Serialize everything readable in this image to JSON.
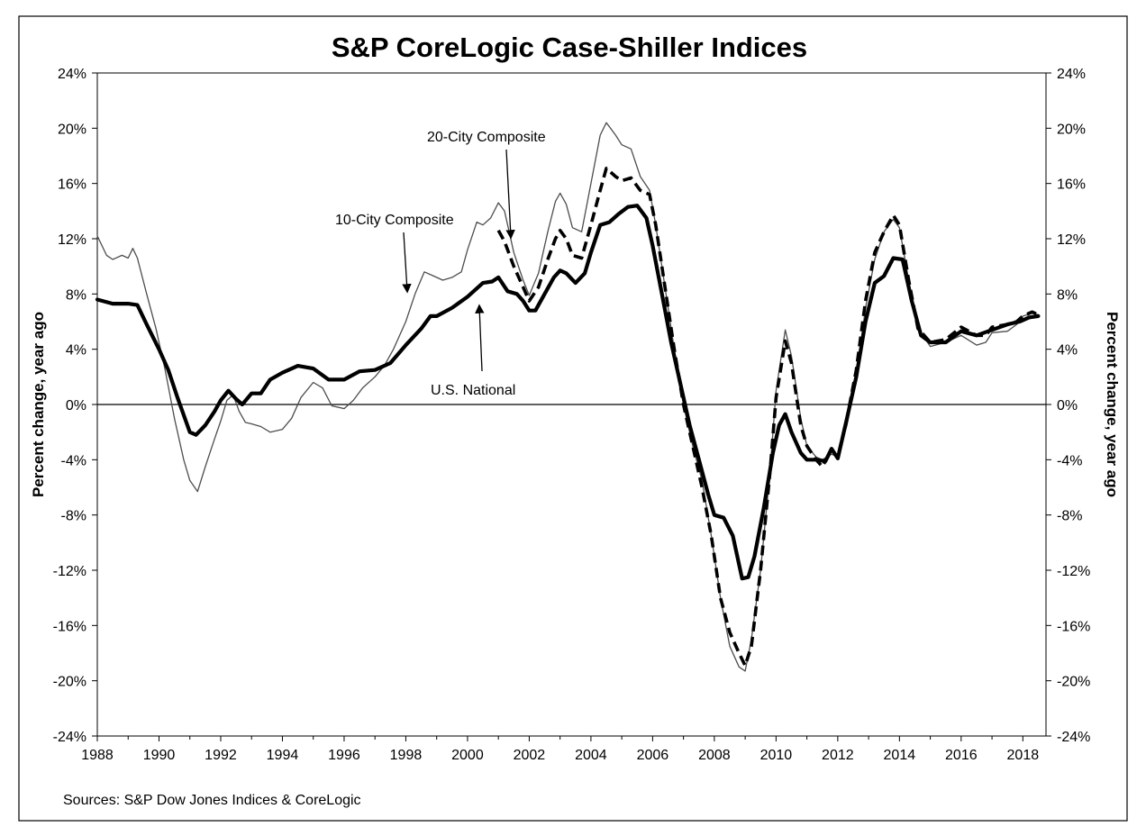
{
  "chart_data": {
    "type": "line",
    "title": "S&P CoreLogic Case-Shiller Indices",
    "ylabel_left": "Percent change, year ago",
    "ylabel_right": "Percent change, year ago",
    "source": "Sources: S&P Dow Jones Indices & CoreLogic",
    "xlim": [
      1988,
      2018.75
    ],
    "ylim": [
      -24,
      24
    ],
    "x_ticks": [
      1988,
      1990,
      1992,
      1994,
      1996,
      1998,
      2000,
      2002,
      2004,
      2006,
      2008,
      2010,
      2012,
      2014,
      2016,
      2018
    ],
    "x_tick_labels": [
      "1988",
      "1990",
      "1992",
      "1994",
      "1996",
      "1998",
      "2000",
      "2002",
      "2004",
      "2006",
      "2008",
      "2010",
      "2012",
      "2014",
      "2016",
      "2018"
    ],
    "y_ticks": [
      -24,
      -20,
      -16,
      -12,
      -8,
      -4,
      0,
      4,
      8,
      12,
      16,
      20,
      24
    ],
    "y_tick_labels": [
      "-24%",
      "-20%",
      "-16%",
      "-12%",
      "-8%",
      "-4%",
      "0%",
      "4%",
      "8%",
      "12%",
      "16%",
      "20%",
      "24%"
    ],
    "grid": false,
    "legend": "none",
    "series": [
      {
        "name": "10-City Composite",
        "style": "thin",
        "color": "#4d4d4d",
        "points": [
          [
            1988.0,
            12.2
          ],
          [
            1988.3,
            10.8
          ],
          [
            1988.5,
            10.5
          ],
          [
            1988.8,
            10.8
          ],
          [
            1989.0,
            10.6
          ],
          [
            1989.15,
            11.3
          ],
          [
            1989.3,
            10.6
          ],
          [
            1989.6,
            8.0
          ],
          [
            1989.9,
            5.5
          ],
          [
            1990.2,
            2.5
          ],
          [
            1990.5,
            -1.0
          ],
          [
            1990.8,
            -4.0
          ],
          [
            1991.0,
            -5.5
          ],
          [
            1991.25,
            -6.3
          ],
          [
            1991.5,
            -4.5
          ],
          [
            1991.8,
            -2.5
          ],
          [
            1992.0,
            -1.2
          ],
          [
            1992.2,
            0.3
          ],
          [
            1992.4,
            0.7
          ],
          [
            1992.6,
            -0.5
          ],
          [
            1992.8,
            -1.3
          ],
          [
            1993.0,
            -1.4
          ],
          [
            1993.3,
            -1.6
          ],
          [
            1993.6,
            -2.0
          ],
          [
            1994.0,
            -1.8
          ],
          [
            1994.3,
            -1.0
          ],
          [
            1994.6,
            0.5
          ],
          [
            1995.0,
            1.6
          ],
          [
            1995.3,
            1.2
          ],
          [
            1995.6,
            -0.1
          ],
          [
            1996.0,
            -0.3
          ],
          [
            1996.3,
            0.3
          ],
          [
            1996.6,
            1.2
          ],
          [
            1997.0,
            2.0
          ],
          [
            1997.3,
            2.8
          ],
          [
            1997.6,
            4.0
          ],
          [
            1998.0,
            6.0
          ],
          [
            1998.3,
            8.0
          ],
          [
            1998.6,
            9.6
          ],
          [
            1998.9,
            9.3
          ],
          [
            1999.2,
            9.0
          ],
          [
            1999.5,
            9.2
          ],
          [
            1999.8,
            9.6
          ],
          [
            2000.0,
            11.2
          ],
          [
            2000.3,
            13.2
          ],
          [
            2000.5,
            13.0
          ],
          [
            2000.75,
            13.5
          ],
          [
            2001.0,
            14.6
          ],
          [
            2001.2,
            14.0
          ],
          [
            2001.5,
            11.0
          ],
          [
            2001.8,
            9.0
          ],
          [
            2002.0,
            7.9
          ],
          [
            2002.3,
            9.5
          ],
          [
            2002.6,
            12.5
          ],
          [
            2002.85,
            14.7
          ],
          [
            2003.0,
            15.3
          ],
          [
            2003.2,
            14.5
          ],
          [
            2003.4,
            12.8
          ],
          [
            2003.7,
            12.5
          ],
          [
            2004.0,
            16.0
          ],
          [
            2004.3,
            19.5
          ],
          [
            2004.5,
            20.4
          ],
          [
            2004.8,
            19.5
          ],
          [
            2005.0,
            18.8
          ],
          [
            2005.3,
            18.5
          ],
          [
            2005.6,
            16.5
          ],
          [
            2005.9,
            15.5
          ],
          [
            2006.1,
            13.0
          ],
          [
            2006.4,
            8.5
          ],
          [
            2006.7,
            4.0
          ],
          [
            2007.0,
            0.0
          ],
          [
            2007.3,
            -3.0
          ],
          [
            2007.6,
            -5.5
          ],
          [
            2007.9,
            -9.5
          ],
          [
            2008.2,
            -14.0
          ],
          [
            2008.5,
            -17.5
          ],
          [
            2008.8,
            -19.0
          ],
          [
            2009.0,
            -19.3
          ],
          [
            2009.2,
            -17.0
          ],
          [
            2009.5,
            -12.0
          ],
          [
            2009.8,
            -5.0
          ],
          [
            2010.0,
            1.0
          ],
          [
            2010.3,
            5.4
          ],
          [
            2010.5,
            3.5
          ],
          [
            2010.8,
            -1.0
          ],
          [
            2011.0,
            -3.0
          ],
          [
            2011.3,
            -3.8
          ],
          [
            2011.5,
            -4.0
          ],
          [
            2011.8,
            -3.6
          ],
          [
            2012.0,
            -3.8
          ],
          [
            2012.3,
            -1.5
          ],
          [
            2012.6,
            2.0
          ],
          [
            2012.9,
            7.0
          ],
          [
            2013.2,
            10.5
          ],
          [
            2013.5,
            12.5
          ],
          [
            2013.8,
            13.4
          ],
          [
            2014.0,
            12.8
          ],
          [
            2014.3,
            9.0
          ],
          [
            2014.6,
            5.5
          ],
          [
            2015.0,
            4.2
          ],
          [
            2015.5,
            4.5
          ],
          [
            2016.0,
            5.0
          ],
          [
            2016.5,
            4.3
          ],
          [
            2016.8,
            4.5
          ],
          [
            2017.0,
            5.2
          ],
          [
            2017.5,
            5.3
          ],
          [
            2017.8,
            5.8
          ],
          [
            2018.0,
            6.4
          ],
          [
            2018.3,
            6.6
          ],
          [
            2018.5,
            6.5
          ]
        ]
      },
      {
        "name": "20-City Composite",
        "style": "dashed",
        "color": "#000000",
        "points": [
          [
            2001.0,
            12.6
          ],
          [
            2001.2,
            11.8
          ],
          [
            2001.5,
            10.0
          ],
          [
            2001.8,
            8.5
          ],
          [
            2002.0,
            7.5
          ],
          [
            2002.3,
            8.5
          ],
          [
            2002.6,
            10.5
          ],
          [
            2002.85,
            12.0
          ],
          [
            2003.0,
            12.6
          ],
          [
            2003.2,
            12.0
          ],
          [
            2003.4,
            10.8
          ],
          [
            2003.7,
            10.6
          ],
          [
            2004.0,
            13.0
          ],
          [
            2004.3,
            15.5
          ],
          [
            2004.5,
            17.1
          ],
          [
            2004.8,
            16.5
          ],
          [
            2005.0,
            16.2
          ],
          [
            2005.3,
            16.4
          ],
          [
            2005.6,
            15.5
          ],
          [
            2005.9,
            15.2
          ],
          [
            2006.1,
            13.0
          ],
          [
            2006.4,
            8.5
          ],
          [
            2006.7,
            4.0
          ],
          [
            2007.0,
            0.0
          ],
          [
            2007.3,
            -3.0
          ],
          [
            2007.6,
            -6.0
          ],
          [
            2007.9,
            -9.5
          ],
          [
            2008.2,
            -14.0
          ],
          [
            2008.5,
            -16.5
          ],
          [
            2008.8,
            -18.0
          ],
          [
            2009.0,
            -18.9
          ],
          [
            2009.2,
            -17.5
          ],
          [
            2009.5,
            -12.0
          ],
          [
            2009.8,
            -5.0
          ],
          [
            2010.0,
            0.5
          ],
          [
            2010.3,
            4.6
          ],
          [
            2010.5,
            3.0
          ],
          [
            2010.8,
            -1.5
          ],
          [
            2011.0,
            -3.0
          ],
          [
            2011.3,
            -4.0
          ],
          [
            2011.5,
            -4.5
          ],
          [
            2011.8,
            -3.3
          ],
          [
            2012.0,
            -3.8
          ],
          [
            2012.3,
            -1.0
          ],
          [
            2012.6,
            2.5
          ],
          [
            2012.9,
            7.5
          ],
          [
            2013.2,
            11.0
          ],
          [
            2013.5,
            12.5
          ],
          [
            2013.8,
            13.7
          ],
          [
            2014.0,
            13.0
          ],
          [
            2014.3,
            9.0
          ],
          [
            2014.6,
            5.5
          ],
          [
            2015.0,
            4.5
          ],
          [
            2015.5,
            4.7
          ],
          [
            2016.0,
            5.6
          ],
          [
            2016.5,
            5.0
          ],
          [
            2016.8,
            5.0
          ],
          [
            2017.0,
            5.6
          ],
          [
            2017.5,
            5.8
          ],
          [
            2017.8,
            6.0
          ],
          [
            2018.0,
            6.4
          ],
          [
            2018.3,
            6.7
          ],
          [
            2018.5,
            6.5
          ]
        ]
      },
      {
        "name": "U.S. National",
        "style": "thick",
        "color": "#000000",
        "points": [
          [
            1988.0,
            7.6
          ],
          [
            1988.5,
            7.3
          ],
          [
            1989.0,
            7.3
          ],
          [
            1989.3,
            7.2
          ],
          [
            1989.6,
            5.8
          ],
          [
            1990.0,
            4.0
          ],
          [
            1990.3,
            2.5
          ],
          [
            1990.6,
            0.5
          ],
          [
            1991.0,
            -2.0
          ],
          [
            1991.2,
            -2.2
          ],
          [
            1991.5,
            -1.5
          ],
          [
            1991.8,
            -0.5
          ],
          [
            1992.0,
            0.3
          ],
          [
            1992.25,
            1.0
          ],
          [
            1992.5,
            0.4
          ],
          [
            1992.7,
            0.0
          ],
          [
            1993.0,
            0.8
          ],
          [
            1993.3,
            0.8
          ],
          [
            1993.6,
            1.8
          ],
          [
            1994.0,
            2.3
          ],
          [
            1994.5,
            2.8
          ],
          [
            1995.0,
            2.6
          ],
          [
            1995.5,
            1.8
          ],
          [
            1996.0,
            1.8
          ],
          [
            1996.5,
            2.4
          ],
          [
            1997.0,
            2.5
          ],
          [
            1997.5,
            3.0
          ],
          [
            1998.0,
            4.3
          ],
          [
            1998.5,
            5.5
          ],
          [
            1998.8,
            6.4
          ],
          [
            1999.0,
            6.4
          ],
          [
            1999.5,
            7.0
          ],
          [
            2000.0,
            7.8
          ],
          [
            2000.5,
            8.8
          ],
          [
            2000.8,
            8.9
          ],
          [
            2001.0,
            9.2
          ],
          [
            2001.3,
            8.2
          ],
          [
            2001.6,
            8.0
          ],
          [
            2001.8,
            7.5
          ],
          [
            2002.0,
            6.8
          ],
          [
            2002.2,
            6.8
          ],
          [
            2002.5,
            8.0
          ],
          [
            2002.8,
            9.2
          ],
          [
            2003.0,
            9.7
          ],
          [
            2003.2,
            9.5
          ],
          [
            2003.5,
            8.8
          ],
          [
            2003.8,
            9.5
          ],
          [
            2004.0,
            11.0
          ],
          [
            2004.3,
            13.0
          ],
          [
            2004.6,
            13.2
          ],
          [
            2004.9,
            13.8
          ],
          [
            2005.2,
            14.3
          ],
          [
            2005.5,
            14.4
          ],
          [
            2005.8,
            13.5
          ],
          [
            2006.0,
            11.5
          ],
          [
            2006.3,
            8.0
          ],
          [
            2006.6,
            4.5
          ],
          [
            2006.9,
            1.5
          ],
          [
            2007.2,
            -1.5
          ],
          [
            2007.5,
            -4.0
          ],
          [
            2007.8,
            -6.5
          ],
          [
            2008.0,
            -8.0
          ],
          [
            2008.3,
            -8.2
          ],
          [
            2008.6,
            -9.5
          ],
          [
            2008.9,
            -12.6
          ],
          [
            2009.1,
            -12.5
          ],
          [
            2009.3,
            -11.0
          ],
          [
            2009.6,
            -7.5
          ],
          [
            2009.9,
            -3.5
          ],
          [
            2010.1,
            -1.5
          ],
          [
            2010.3,
            -0.7
          ],
          [
            2010.5,
            -2.0
          ],
          [
            2010.8,
            -3.5
          ],
          [
            2011.0,
            -4.0
          ],
          [
            2011.3,
            -4.0
          ],
          [
            2011.6,
            -4.1
          ],
          [
            2011.8,
            -3.2
          ],
          [
            2012.0,
            -3.9
          ],
          [
            2012.3,
            -1.0
          ],
          [
            2012.6,
            2.0
          ],
          [
            2012.9,
            6.0
          ],
          [
            2013.2,
            8.8
          ],
          [
            2013.5,
            9.3
          ],
          [
            2013.8,
            10.6
          ],
          [
            2014.1,
            10.5
          ],
          [
            2014.4,
            7.5
          ],
          [
            2014.7,
            5.0
          ],
          [
            2015.0,
            4.5
          ],
          [
            2015.5,
            4.5
          ],
          [
            2016.0,
            5.3
          ],
          [
            2016.5,
            5.0
          ],
          [
            2017.0,
            5.4
          ],
          [
            2017.5,
            5.8
          ],
          [
            2017.9,
            6.0
          ],
          [
            2018.2,
            6.3
          ],
          [
            2018.5,
            6.4
          ]
        ]
      }
    ],
    "annotations": [
      {
        "text": "20-City Composite",
        "target": [
          2001.4,
          12.2
        ]
      },
      {
        "text": "10-City Composite",
        "target": [
          1998.0,
          7.9
        ]
      },
      {
        "text": "U.S. National",
        "target": [
          2000.4,
          7.4
        ]
      }
    ]
  }
}
